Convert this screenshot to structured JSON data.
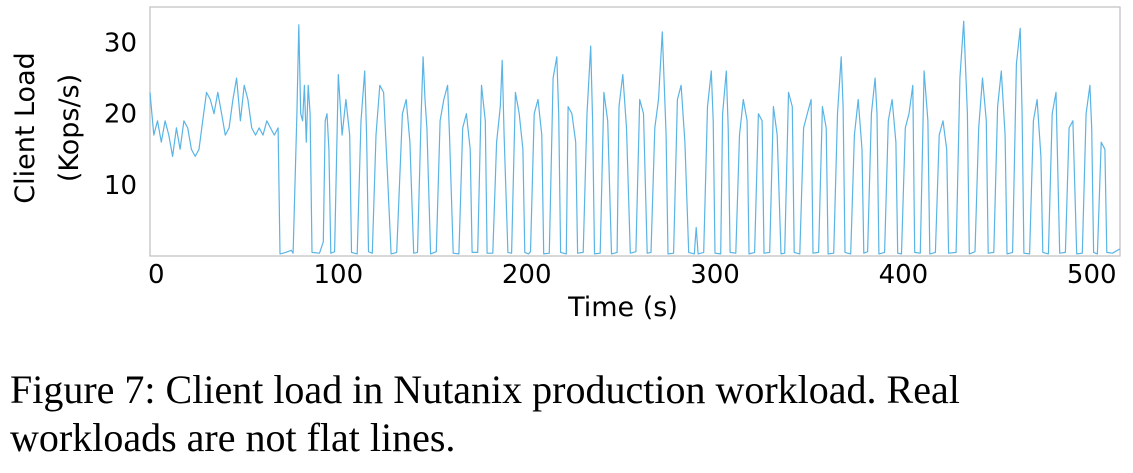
{
  "chart_data": {
    "type": "line",
    "title": "",
    "xlabel": "Time (s)",
    "ylabel": [
      "Client Load",
      "(Kops/s)"
    ],
    "xlim": [
      0,
      515
    ],
    "ylim": [
      0,
      35
    ],
    "xticks": [
      0,
      100,
      200,
      300,
      400,
      500
    ],
    "yticks": [
      10,
      20,
      30
    ],
    "grid": false,
    "line_color": "#5ab4e5",
    "series": [
      {
        "name": "",
        "points": [
          [
            0,
            23
          ],
          [
            2,
            17
          ],
          [
            4,
            19
          ],
          [
            6,
            16
          ],
          [
            8,
            19
          ],
          [
            10,
            17
          ],
          [
            12,
            14
          ],
          [
            14,
            18
          ],
          [
            16,
            15
          ],
          [
            18,
            19
          ],
          [
            20,
            18
          ],
          [
            22,
            15
          ],
          [
            24,
            14
          ],
          [
            26,
            15
          ],
          [
            28,
            19
          ],
          [
            30,
            23
          ],
          [
            32,
            22
          ],
          [
            34,
            20
          ],
          [
            36,
            23
          ],
          [
            38,
            20
          ],
          [
            40,
            17
          ],
          [
            42,
            18
          ],
          [
            44,
            22
          ],
          [
            46,
            25
          ],
          [
            48,
            19
          ],
          [
            50,
            24
          ],
          [
            52,
            22
          ],
          [
            54,
            18
          ],
          [
            56,
            17
          ],
          [
            58,
            18
          ],
          [
            60,
            17
          ],
          [
            62,
            19
          ],
          [
            64,
            18
          ],
          [
            66,
            17
          ],
          [
            68,
            18
          ],
          [
            69,
            0.3
          ],
          [
            72,
            0.5
          ],
          [
            75,
            0.8
          ],
          [
            76,
            0.4
          ],
          [
            78,
            20
          ],
          [
            79,
            32.5
          ],
          [
            80,
            20
          ],
          [
            81,
            19
          ],
          [
            82,
            24
          ],
          [
            83,
            16
          ],
          [
            84,
            24
          ],
          [
            85,
            20
          ],
          [
            86,
            0.5
          ],
          [
            90,
            0.4
          ],
          [
            92,
            2
          ],
          [
            93,
            19
          ],
          [
            94,
            20
          ],
          [
            95,
            15
          ],
          [
            96,
            0.4
          ],
          [
            98,
            0.6
          ],
          [
            100,
            25.5
          ],
          [
            102,
            17
          ],
          [
            104,
            22
          ],
          [
            106,
            17
          ],
          [
            107,
            0.5
          ],
          [
            110,
            0.3
          ],
          [
            112,
            19
          ],
          [
            114,
            26
          ],
          [
            115,
            17
          ],
          [
            116,
            0.6
          ],
          [
            118,
            0.4
          ],
          [
            120,
            17
          ],
          [
            122,
            24
          ],
          [
            124,
            23
          ],
          [
            126,
            12
          ],
          [
            128,
            0.3
          ],
          [
            131,
            0.5
          ],
          [
            134,
            20
          ],
          [
            136,
            22
          ],
          [
            138,
            16
          ],
          [
            140,
            0.4
          ],
          [
            142,
            0.5
          ],
          [
            144,
            20
          ],
          [
            145,
            28
          ],
          [
            146,
            22
          ],
          [
            147,
            18
          ],
          [
            149,
            0.3
          ],
          [
            152,
            0.6
          ],
          [
            154,
            19
          ],
          [
            156,
            22
          ],
          [
            158,
            24
          ],
          [
            159,
            17
          ],
          [
            161,
            0.4
          ],
          [
            164,
            0.3
          ],
          [
            166,
            18
          ],
          [
            168,
            20
          ],
          [
            170,
            15
          ],
          [
            171,
            0.5
          ],
          [
            174,
            0.5
          ],
          [
            176,
            24
          ],
          [
            178,
            19
          ],
          [
            179,
            0.4
          ],
          [
            182,
            0.4
          ],
          [
            184,
            16
          ],
          [
            186,
            21
          ],
          [
            187,
            27.5
          ],
          [
            188,
            17
          ],
          [
            190,
            0.5
          ],
          [
            192,
            0.4
          ],
          [
            194,
            23
          ],
          [
            196,
            20
          ],
          [
            198,
            15
          ],
          [
            199,
            0.5
          ],
          [
            201,
            0.3
          ],
          [
            202,
            0.6
          ],
          [
            204,
            20
          ],
          [
            206,
            22
          ],
          [
            208,
            17
          ],
          [
            209,
            0.3
          ],
          [
            212,
            0.4
          ],
          [
            214,
            25
          ],
          [
            216,
            28
          ],
          [
            217,
            20
          ],
          [
            218,
            0.5
          ],
          [
            221,
            0.3
          ],
          [
            222,
            21
          ],
          [
            224,
            20
          ],
          [
            226,
            16
          ],
          [
            227,
            0.4
          ],
          [
            230,
            0.5
          ],
          [
            232,
            20
          ],
          [
            234,
            29.5
          ],
          [
            235,
            19
          ],
          [
            236,
            0.3
          ],
          [
            239,
            0.4
          ],
          [
            241,
            23
          ],
          [
            243,
            19
          ],
          [
            245,
            0.3
          ],
          [
            248,
            0.5
          ],
          [
            249,
            21
          ],
          [
            251,
            25.5
          ],
          [
            253,
            18
          ],
          [
            255,
            0.4
          ],
          [
            258,
            0.6
          ],
          [
            260,
            22
          ],
          [
            262,
            20
          ],
          [
            264,
            0.4
          ],
          [
            266,
            0.5
          ],
          [
            268,
            18
          ],
          [
            270,
            22
          ],
          [
            272,
            31.5
          ],
          [
            274,
            17
          ],
          [
            275,
            0.3
          ],
          [
            278,
            0.4
          ],
          [
            280,
            22
          ],
          [
            282,
            24
          ],
          [
            284,
            16
          ],
          [
            286,
            0.5
          ],
          [
            289,
            0.3
          ],
          [
            290,
            4
          ],
          [
            291,
            0.3
          ],
          [
            294,
            0.5
          ],
          [
            296,
            21
          ],
          [
            298,
            26
          ],
          [
            299,
            19
          ],
          [
            300,
            0.4
          ],
          [
            303,
            0.3
          ],
          [
            304,
            20
          ],
          [
            306,
            26
          ],
          [
            307,
            18
          ],
          [
            308,
            0.5
          ],
          [
            311,
            0.4
          ],
          [
            313,
            17
          ],
          [
            315,
            22
          ],
          [
            317,
            19
          ],
          [
            318,
            0.3
          ],
          [
            321,
            0.5
          ],
          [
            323,
            20
          ],
          [
            325,
            19
          ],
          [
            326,
            0.4
          ],
          [
            329,
            0.5
          ],
          [
            331,
            21
          ],
          [
            333,
            17
          ],
          [
            335,
            0.3
          ],
          [
            337,
            0.4
          ],
          [
            339,
            23
          ],
          [
            341,
            21
          ],
          [
            342,
            0.5
          ],
          [
            345,
            0.3
          ],
          [
            347,
            18
          ],
          [
            349,
            20
          ],
          [
            351,
            22
          ],
          [
            352,
            0.4
          ],
          [
            355,
            0.5
          ],
          [
            357,
            21
          ],
          [
            359,
            18
          ],
          [
            360,
            0.3
          ],
          [
            363,
            0.4
          ],
          [
            365,
            20
          ],
          [
            367,
            28
          ],
          [
            368,
            21
          ],
          [
            369,
            0.5
          ],
          [
            372,
            0.3
          ],
          [
            374,
            17
          ],
          [
            376,
            22
          ],
          [
            378,
            15
          ],
          [
            379,
            0.4
          ],
          [
            381,
            0.6
          ],
          [
            383,
            20
          ],
          [
            385,
            25
          ],
          [
            386,
            20
          ],
          [
            387,
            0.3
          ],
          [
            390,
            0.5
          ],
          [
            392,
            19
          ],
          [
            394,
            22
          ],
          [
            396,
            16
          ],
          [
            397,
            0.4
          ],
          [
            399,
            0.3
          ],
          [
            401,
            18
          ],
          [
            403,
            20
          ],
          [
            405,
            24
          ],
          [
            406,
            0.5
          ],
          [
            409,
            0.4
          ],
          [
            411,
            26
          ],
          [
            413,
            19
          ],
          [
            414,
            0.3
          ],
          [
            417,
            0.5
          ],
          [
            419,
            17
          ],
          [
            421,
            19
          ],
          [
            423,
            15
          ],
          [
            424,
            0.4
          ],
          [
            428,
            0.5
          ],
          [
            430,
            25
          ],
          [
            432,
            33
          ],
          [
            434,
            20
          ],
          [
            435,
            0.3
          ],
          [
            438,
            0.6
          ],
          [
            440,
            18
          ],
          [
            442,
            25
          ],
          [
            444,
            19
          ],
          [
            445,
            0.4
          ],
          [
            448,
            0.5
          ],
          [
            450,
            21
          ],
          [
            452,
            26
          ],
          [
            454,
            17
          ],
          [
            455,
            0.3
          ],
          [
            458,
            0.5
          ],
          [
            460,
            27
          ],
          [
            462,
            32
          ],
          [
            463,
            20
          ],
          [
            464,
            0.4
          ],
          [
            467,
            0.3
          ],
          [
            469,
            19
          ],
          [
            471,
            22
          ],
          [
            473,
            14
          ],
          [
            474,
            0.5
          ],
          [
            477,
            0.3
          ],
          [
            479,
            20
          ],
          [
            481,
            23
          ],
          [
            483,
            0.4
          ],
          [
            486,
            0.5
          ],
          [
            488,
            18
          ],
          [
            490,
            19
          ],
          [
            492,
            0.3
          ],
          [
            495,
            0.4
          ],
          [
            497,
            20
          ],
          [
            499,
            24
          ],
          [
            500,
            18
          ],
          [
            501,
            0.5
          ],
          [
            503,
            0.3
          ],
          [
            505,
            16
          ],
          [
            507,
            15
          ],
          [
            508,
            0.5
          ],
          [
            511,
            0.4
          ],
          [
            515,
            1
          ]
        ]
      }
    ]
  },
  "caption": "Figure 7: Client load in Nutanix production workload. Real workloads are not flat lines."
}
